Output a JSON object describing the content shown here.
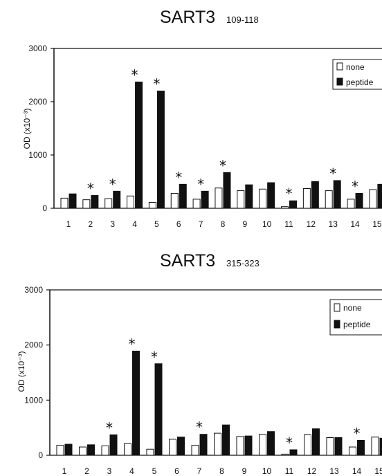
{
  "chart_data": [
    {
      "type": "bar",
      "title": "SART3",
      "subtitle": "109-118",
      "ylabel": "OD (x10⁻³)",
      "ylim": [
        0,
        3000
      ],
      "yticks": [
        "0",
        "1000",
        "2000",
        "3000"
      ],
      "categories": [
        "1",
        "2",
        "3",
        "4",
        "5",
        "6",
        "7",
        "8",
        "9",
        "10",
        "11",
        "12",
        "13",
        "14",
        "15"
      ],
      "series": [
        {
          "name": "none",
          "color": "#ffffff",
          "values": [
            190,
            160,
            180,
            230,
            110,
            280,
            170,
            380,
            330,
            360,
            30,
            370,
            330,
            170,
            350
          ]
        },
        {
          "name": "peptide",
          "color": "#111111",
          "values": [
            270,
            240,
            320,
            2370,
            2200,
            450,
            320,
            670,
            440,
            480,
            140,
            500,
            520,
            280,
            450
          ]
        }
      ],
      "significant": [
        "",
        "*",
        "*",
        "*",
        "*",
        "*",
        "*",
        "*",
        "",
        "",
        "*",
        "",
        "*",
        "*",
        ""
      ],
      "legend": "top-right",
      "grid": false
    },
    {
      "type": "bar",
      "title": "SART3",
      "subtitle": "315-323",
      "ylabel": "OD (x10⁻³)",
      "ylim": [
        0,
        3000
      ],
      "yticks": [
        "0",
        "1000",
        "2000",
        "3000"
      ],
      "categories": [
        "1",
        "2",
        "3",
        "4",
        "5",
        "6",
        "7",
        "8",
        "9",
        "10",
        "11",
        "12",
        "13",
        "14",
        "15"
      ],
      "series": [
        {
          "name": "none",
          "color": "#ffffff",
          "values": [
            180,
            150,
            170,
            210,
            110,
            290,
            180,
            400,
            340,
            380,
            20,
            370,
            320,
            150,
            330
          ]
        },
        {
          "name": "peptide",
          "color": "#111111",
          "values": [
            200,
            190,
            370,
            1890,
            1660,
            330,
            380,
            550,
            350,
            430,
            100,
            480,
            320,
            270,
            310
          ]
        }
      ],
      "significant": [
        "",
        "",
        "*",
        "*",
        "*",
        "",
        "*",
        "",
        "",
        "",
        "*",
        "",
        "",
        "*",
        ""
      ],
      "legend": "top-right",
      "grid": false
    }
  ]
}
